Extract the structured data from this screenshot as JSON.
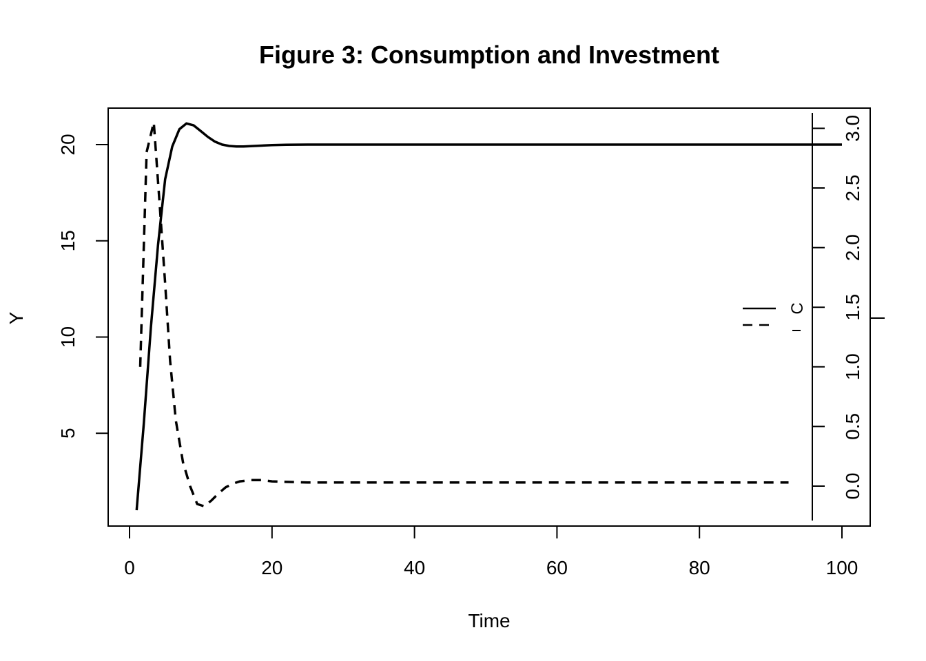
{
  "chart_data": {
    "type": "line",
    "title": "Figure 3: Consumption and Investment",
    "xlabel": "Time",
    "ylabel": "Y",
    "xlim": [
      0,
      100
    ],
    "ylim": [
      0,
      22
    ],
    "x_ticks": [
      0,
      20,
      40,
      60,
      80,
      100
    ],
    "y_ticks": [
      5,
      10,
      15,
      20
    ],
    "secondary_axis": {
      "ylim": [
        -0.2,
        3.3
      ],
      "ticks": [
        "0.0",
        "0.5",
        "1.0",
        "1.5",
        "2.0",
        "2.5",
        "3.0"
      ]
    },
    "grid": false,
    "legend": {
      "placement": "right",
      "entries": [
        {
          "label": "C",
          "style": "solid"
        },
        {
          "label": "",
          "style": "dashed"
        }
      ]
    },
    "series": [
      {
        "style": "solid",
        "axis": "left",
        "x": [
          1,
          2,
          3,
          4,
          5,
          6,
          7,
          8,
          9,
          10,
          11,
          12,
          13,
          14,
          15,
          16,
          17,
          18,
          20,
          22,
          25,
          30,
          40,
          50,
          60,
          70,
          80,
          90,
          100
        ],
        "values": [
          1.0,
          5.5,
          10.5,
          14.8,
          18.2,
          19.9,
          20.8,
          21.1,
          21.0,
          20.7,
          20.4,
          20.15,
          20.0,
          19.93,
          19.9,
          19.9,
          19.92,
          19.94,
          19.97,
          19.99,
          20.0,
          20.0,
          20.0,
          20.0,
          20.0,
          20.0,
          20.0,
          20.0,
          20.0
        ]
      },
      {
        "style": "dashed",
        "axis": "right",
        "x": [
          1.5,
          2.4,
          3.4,
          4.3,
          5.0,
          5.7,
          6.5,
          7.5,
          8.5,
          9.5,
          10.5,
          11.5,
          12.5,
          13.5,
          14.5,
          15.5,
          17,
          18.5,
          20,
          25,
          30,
          40,
          50,
          60,
          70,
          80,
          92.5
        ],
        "values": [
          1.0,
          2.8,
          3.05,
          2.3,
          1.7,
          1.05,
          0.55,
          0.2,
          0.0,
          -0.15,
          -0.17,
          -0.12,
          -0.06,
          -0.01,
          0.02,
          0.04,
          0.05,
          0.05,
          0.04,
          0.03,
          0.03,
          0.03,
          0.03,
          0.03,
          0.03,
          0.03,
          0.03
        ]
      }
    ]
  }
}
